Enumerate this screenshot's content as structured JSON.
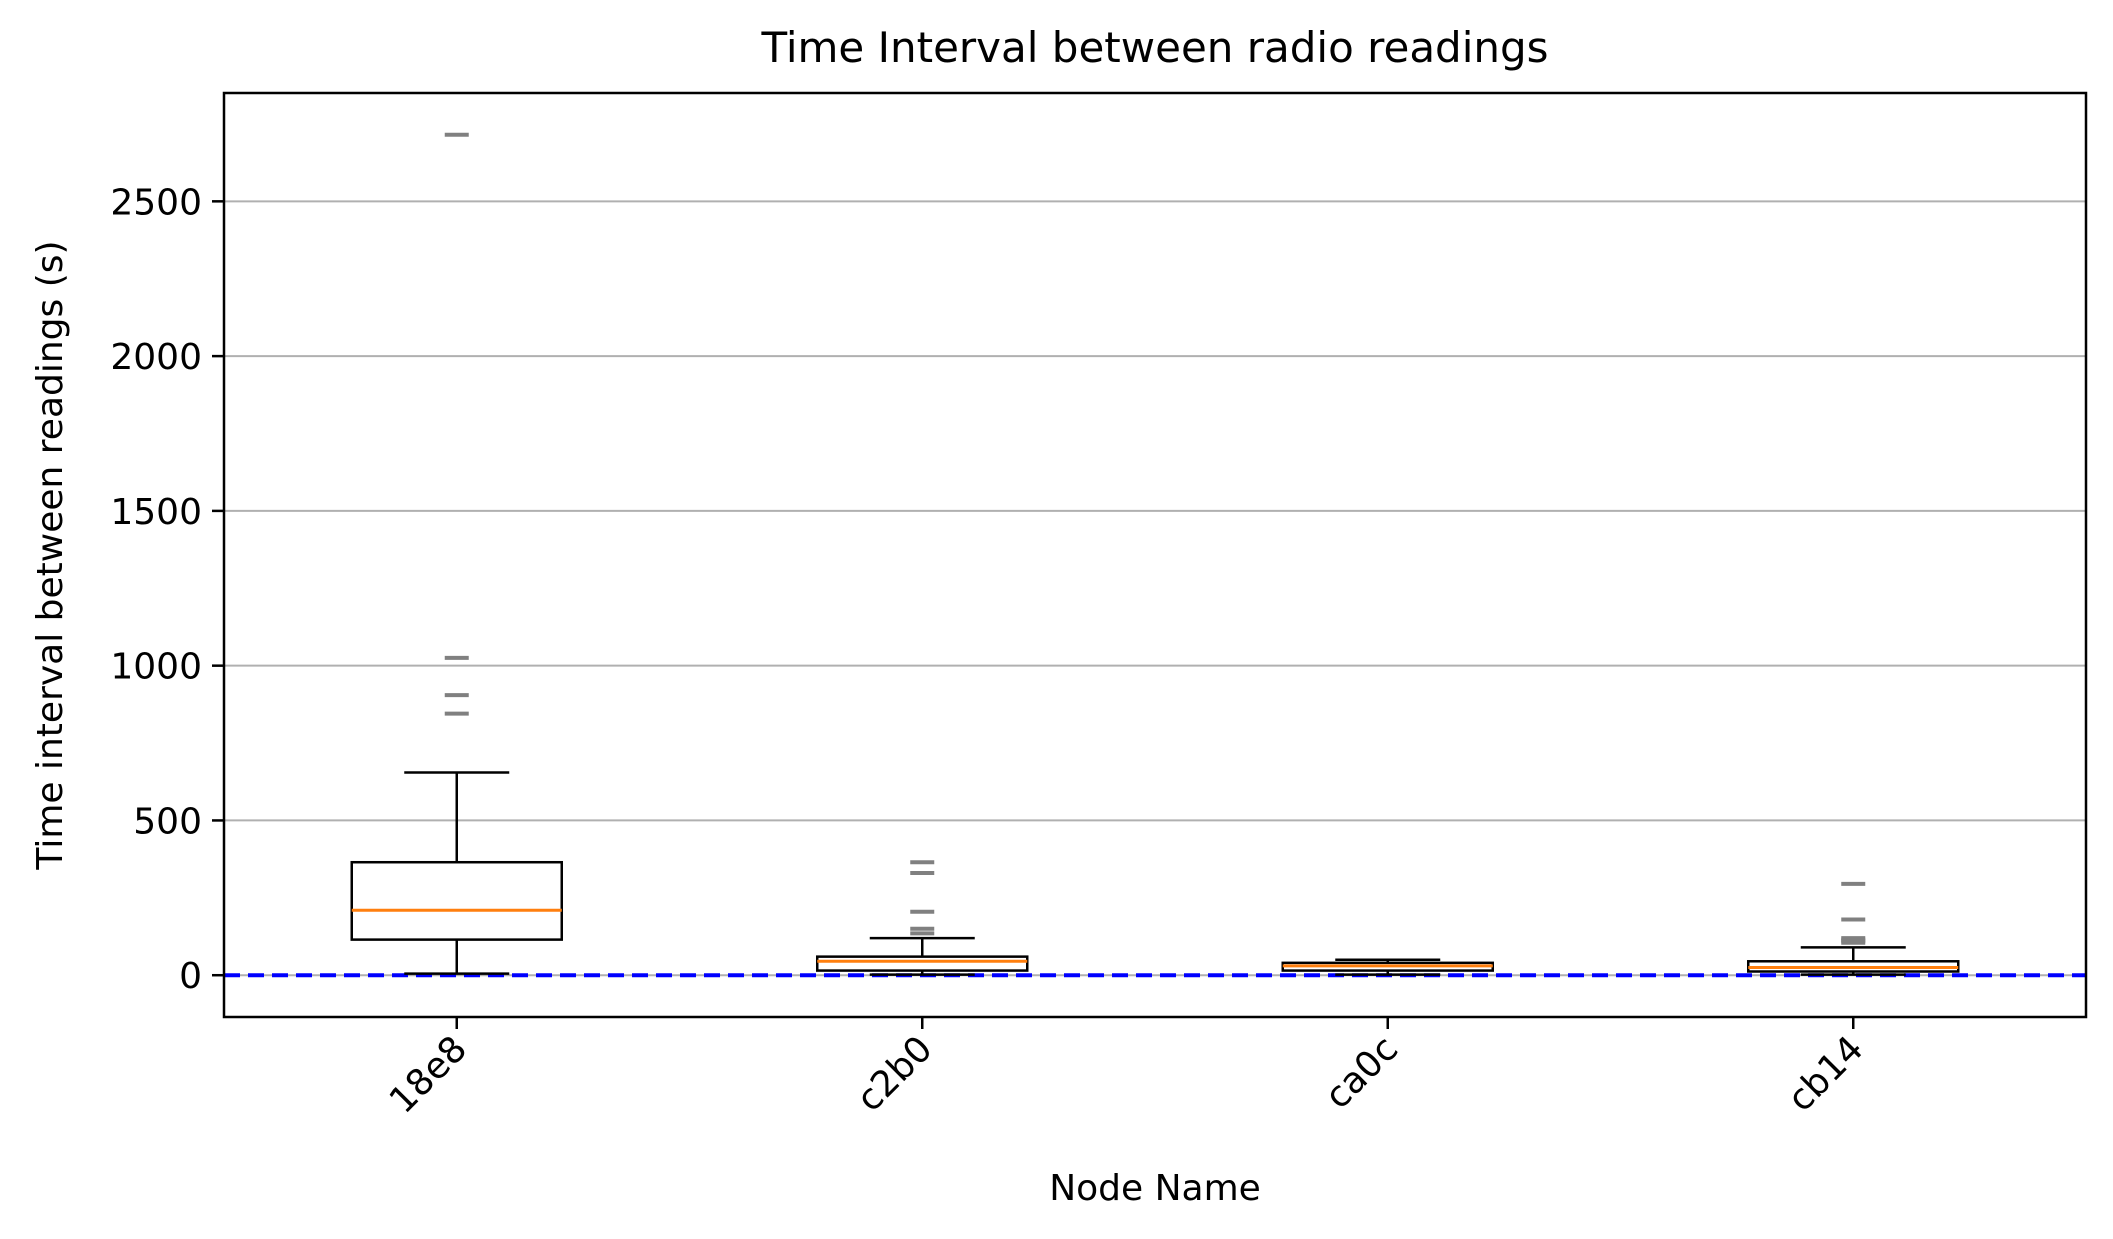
{
  "chart_data": {
    "type": "box",
    "title": "Time Interval between radio readings",
    "xlabel": "Node Name",
    "ylabel": "Time interval between readings (s)",
    "categories": [
      "18e8",
      "c2b0",
      "ca0c",
      "cb14"
    ],
    "ylim": [
      -135,
      2850
    ],
    "yticks": [
      0,
      500,
      1000,
      1500,
      2000,
      2500
    ],
    "grid": "y",
    "reference_line": {
      "y": 0,
      "style": "dashed",
      "color": "#0000ff"
    },
    "boxes": [
      {
        "category": "18e8",
        "whislo": 5,
        "q1": 115,
        "med": 210,
        "q3": 365,
        "whishi": 655,
        "fliers": [
          845,
          905,
          1025,
          2715
        ]
      },
      {
        "category": "c2b0",
        "whislo": 2,
        "q1": 15,
        "med": 45,
        "q3": 60,
        "whishi": 120,
        "fliers": [
          135,
          150,
          205,
          330,
          365
        ]
      },
      {
        "category": "ca0c",
        "whislo": 2,
        "q1": 15,
        "med": 30,
        "q3": 40,
        "whishi": 50,
        "fliers": []
      },
      {
        "category": "cb14",
        "whislo": 2,
        "q1": 12,
        "med": 25,
        "q3": 45,
        "whishi": 90,
        "fliers": [
          105,
          110,
          115,
          120,
          180,
          295
        ]
      }
    ],
    "colors": {
      "box": "#000000",
      "median": "#ff7f0e",
      "flier": "#808080",
      "grid": "#b0b0b0",
      "reference": "#0000ff"
    }
  }
}
